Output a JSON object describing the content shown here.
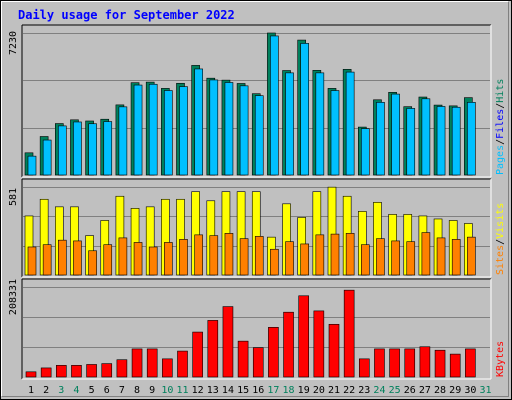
{
  "title": "Daily usage for September 2022",
  "colors": {
    "background": "#c0c0c0",
    "plot_bg": "#c0c0c0",
    "grid": "#808080",
    "hits": "#00805c",
    "files": "#00c0ff",
    "visits": "#ffff00",
    "sites": "#ff8000",
    "kbytes": "#ff0000",
    "weekday_label": "#000000",
    "weekend_label": "#00805c"
  },
  "chart_data": [
    {
      "type": "bar",
      "panel": "top",
      "y_max_label": "7230",
      "ylim": [
        0,
        7230
      ],
      "legend": [
        {
          "label": "Pages",
          "color": "#00c0ff"
        },
        {
          "label": "/",
          "color": "#000000"
        },
        {
          "label": "Files",
          "color": "#0000ff"
        },
        {
          "label": "/",
          "color": "#000000"
        },
        {
          "label": "Hits",
          "color": "#00805c"
        }
      ],
      "categories": [
        "1",
        "2",
        "3",
        "4",
        "5",
        "6",
        "7",
        "8",
        "9",
        "10",
        "11",
        "12",
        "13",
        "14",
        "15",
        "16",
        "17",
        "18",
        "19",
        "20",
        "21",
        "22",
        "23",
        "24",
        "25",
        "26",
        "27",
        "28",
        "29",
        "30",
        "31"
      ],
      "series": [
        {
          "name": "Hits",
          "values": [
            1130,
            1960,
            2620,
            2810,
            2750,
            2840,
            3570,
            4700,
            4730,
            4410,
            4670,
            5580,
            4930,
            4830,
            4660,
            4140,
            7230,
            5320,
            6870,
            5330,
            4410,
            5380,
            2440,
            3830,
            4210,
            3480,
            3970,
            3560,
            3520,
            3940,
            null
          ]
        },
        {
          "name": "Files",
          "values": [
            960,
            1780,
            2500,
            2700,
            2610,
            2720,
            3470,
            4580,
            4620,
            4300,
            4500,
            5400,
            4840,
            4710,
            4540,
            4040,
            7080,
            5200,
            6700,
            5200,
            4300,
            5240,
            2360,
            3700,
            4120,
            3390,
            3880,
            3490,
            3450,
            3700,
            null
          ]
        }
      ]
    },
    {
      "type": "bar",
      "panel": "middle",
      "y_max_label": "581",
      "ylim": [
        0,
        581
      ],
      "legend": [
        {
          "label": "Sites",
          "color": "#ff8000"
        },
        {
          "label": "/",
          "color": "#000000"
        },
        {
          "label": "Visits",
          "color": "#ffff00"
        }
      ],
      "categories": [
        "1",
        "2",
        "3",
        "4",
        "5",
        "6",
        "7",
        "8",
        "9",
        "10",
        "11",
        "12",
        "13",
        "14",
        "15",
        "16",
        "17",
        "18",
        "19",
        "20",
        "21",
        "22",
        "23",
        "24",
        "25",
        "26",
        "27",
        "28",
        "29",
        "30",
        "31"
      ],
      "series": [
        {
          "name": "Visits",
          "values": [
            390,
            500,
            450,
            450,
            260,
            360,
            520,
            440,
            450,
            500,
            500,
            550,
            490,
            550,
            550,
            550,
            250,
            470,
            380,
            550,
            580,
            520,
            420,
            480,
            400,
            400,
            390,
            370,
            360,
            340,
            null
          ]
        },
        {
          "name": "Sites",
          "values": [
            185,
            200,
            230,
            225,
            160,
            200,
            245,
            215,
            185,
            215,
            235,
            265,
            260,
            275,
            240,
            255,
            170,
            220,
            205,
            265,
            270,
            275,
            200,
            240,
            225,
            220,
            280,
            245,
            235,
            250,
            null
          ]
        }
      ]
    },
    {
      "type": "bar",
      "panel": "bottom",
      "y_max_label": "208331",
      "ylim": [
        0,
        208331
      ],
      "legend": [
        {
          "label": "KBytes",
          "color": "#ff0000"
        }
      ],
      "categories": [
        "1",
        "2",
        "3",
        "4",
        "5",
        "6",
        "7",
        "8",
        "9",
        "10",
        "11",
        "12",
        "13",
        "14",
        "15",
        "16",
        "17",
        "18",
        "19",
        "20",
        "21",
        "22",
        "23",
        "24",
        "25",
        "26",
        "27",
        "28",
        "29",
        "30",
        "31"
      ],
      "series": [
        {
          "name": "KBytes",
          "values": [
            12000,
            21000,
            27000,
            27000,
            29000,
            31000,
            40000,
            65000,
            65000,
            42000,
            60000,
            104000,
            131000,
            163000,
            83000,
            68000,
            115000,
            150000,
            188000,
            153000,
            122000,
            201000,
            42000,
            65000,
            65000,
            65000,
            70000,
            62000,
            53000,
            65000,
            null
          ]
        }
      ]
    }
  ],
  "x_axis": {
    "days": [
      "1",
      "2",
      "3",
      "4",
      "5",
      "6",
      "7",
      "8",
      "9",
      "10",
      "11",
      "12",
      "13",
      "14",
      "15",
      "16",
      "17",
      "18",
      "19",
      "20",
      "21",
      "22",
      "23",
      "24",
      "25",
      "26",
      "27",
      "28",
      "29",
      "30",
      "31"
    ],
    "weekend_days": [
      "3",
      "4",
      "10",
      "11",
      "17",
      "18",
      "24",
      "25",
      "31"
    ]
  }
}
